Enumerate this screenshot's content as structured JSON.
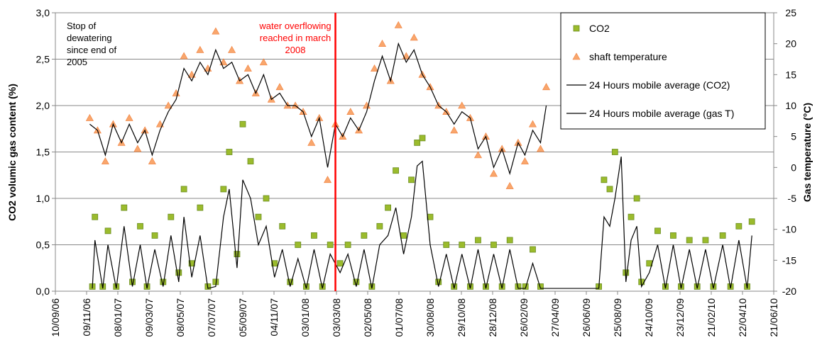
{
  "chart_data": {
    "type": "scatter-line",
    "y_label": "CO2  volumic  gas content  (%)",
    "y2_label": "Gas temperature   (°C)",
    "xlim": [
      "10/09/06",
      "21/06/10"
    ],
    "xticks": [
      "10/09/06",
      "09/11/06",
      "08/01/07",
      "09/03/07",
      "08/05/07",
      "07/07/07",
      "05/09/07",
      "04/11/07",
      "03/01/08",
      "03/03/08",
      "02/05/08",
      "01/07/08",
      "30/08/08",
      "29/10/08",
      "28/12/08",
      "26/02/09",
      "27/04/09",
      "26/06/09",
      "25/08/09",
      "24/10/09",
      "23/12/09",
      "21/02/10",
      "22/04/10",
      "21/06/10"
    ],
    "ylim": [
      0,
      3
    ],
    "yticks": [
      {
        "value": 0,
        "label": "0,0"
      },
      {
        "value": 0.5,
        "label": "0,5"
      },
      {
        "value": 1,
        "label": "1,0"
      },
      {
        "value": 1.5,
        "label": "1,5"
      },
      {
        "value": 2,
        "label": "2,0"
      },
      {
        "value": 2.5,
        "label": "2,5"
      },
      {
        "value": 3,
        "label": "3,0"
      }
    ],
    "y2lim": [
      -20,
      25
    ],
    "y2ticks": [
      -20,
      -15,
      -10,
      -5,
      0,
      5,
      10,
      15,
      20,
      25
    ],
    "grid": true,
    "legend": "top-right",
    "annotations": [
      {
        "text": "Stop of dewatering since end of 2005"
      },
      {
        "text": "water overflowing reached in march 2008",
        "x": "01/03/08",
        "color": "#ff0000"
      }
    ],
    "series": [
      {
        "name": "CO2",
        "color": "#9bbb2c",
        "marker": "square",
        "x": [
          "20/11/06",
          "25/11/06",
          "10/12/06",
          "20/12/06",
          "05/01/07",
          "20/01/07",
          "05/02/07",
          "20/02/07",
          "05/03/07",
          "20/03/07",
          "05/04/07",
          "20/04/07",
          "05/05/07",
          "15/05/07",
          "30/05/07",
          "15/06/07",
          "30/06/07",
          "15/07/07",
          "30/07/07",
          "10/08/07",
          "25/08/07",
          "05/09/07",
          "20/09/07",
          "05/10/07",
          "20/10/07",
          "05/11/07",
          "20/11/07",
          "05/12/07",
          "20/12/07",
          "05/01/08",
          "20/01/08",
          "05/02/08",
          "20/02/08",
          "10/03/08",
          "25/03/08",
          "10/04/08",
          "25/04/08",
          "10/05/08",
          "25/05/08",
          "10/06/08",
          "25/06/08",
          "10/07/08",
          "25/07/08",
          "05/08/08",
          "15/08/08",
          "30/08/08",
          "15/09/08",
          "30/09/08",
          "15/10/08",
          "30/10/08",
          "15/11/08",
          "30/11/08",
          "15/12/08",
          "30/12/08",
          "15/01/09",
          "30/01/09",
          "15/02/09",
          "01/03/09",
          "15/03/09",
          "30/03/09",
          "20/07/09",
          "30/07/09",
          "10/08/09",
          "20/08/09",
          "01/09/09",
          "10/09/09",
          "20/09/09",
          "01/10/09",
          "10/10/09",
          "25/10/09",
          "10/11/09",
          "25/11/09",
          "10/12/09",
          "25/12/09",
          "10/01/10",
          "25/01/10",
          "10/02/10",
          "25/02/10",
          "15/03/10",
          "30/03/10",
          "15/04/10",
          "01/05/10",
          "10/05/10"
        ],
        "values": [
          0.05,
          0.8,
          0.05,
          0.65,
          0.05,
          0.9,
          0.1,
          0.7,
          0.05,
          0.6,
          0.1,
          0.8,
          0.2,
          1.1,
          0.3,
          0.9,
          0.05,
          0.1,
          1.1,
          1.5,
          0.4,
          1.8,
          1.4,
          0.8,
          1.0,
          0.3,
          0.7,
          0.1,
          0.5,
          0.05,
          0.6,
          0.05,
          0.5,
          0.3,
          0.5,
          0.1,
          0.6,
          0.05,
          0.7,
          0.9,
          1.3,
          0.6,
          1.2,
          1.6,
          1.65,
          0.8,
          0.1,
          0.5,
          0.05,
          0.5,
          0.05,
          0.55,
          0.05,
          0.5,
          0.05,
          0.55,
          0.05,
          0.05,
          0.45,
          0.05,
          0.05,
          1.2,
          1.1,
          1.5,
          1.9,
          0.2,
          0.8,
          1.0,
          0.1,
          0.3,
          0.65,
          0.05,
          0.6,
          0.05,
          0.55,
          0.05,
          0.55,
          0.05,
          0.6,
          0.05,
          0.7,
          0.05,
          0.75
        ]
      },
      {
        "name": "shaft temperature",
        "color": "#f9a66c",
        "marker": "triangle",
        "axis": "y2",
        "x": [
          "15/11/06",
          "30/11/06",
          "15/12/06",
          "30/12/06",
          "15/01/07",
          "30/01/07",
          "15/02/07",
          "01/03/07",
          "15/03/07",
          "30/03/07",
          "15/04/07",
          "30/04/07",
          "15/05/07",
          "30/05/07",
          "15/06/07",
          "30/06/07",
          "15/07/07",
          "30/07/07",
          "15/08/07",
          "30/08/07",
          "15/09/07",
          "30/09/07",
          "15/10/07",
          "30/10/07",
          "15/11/07",
          "30/11/07",
          "15/12/07",
          "30/12/07",
          "15/01/08",
          "30/01/08",
          "15/02/08",
          "01/03/08",
          "15/03/08",
          "30/03/08",
          "15/04/08",
          "30/04/08",
          "15/05/08",
          "30/05/08",
          "15/06/08",
          "30/06/08",
          "15/07/08",
          "30/07/08",
          "15/08/08",
          "30/08/08",
          "15/09/08",
          "30/09/08",
          "15/10/08",
          "30/10/08",
          "15/11/08",
          "30/11/08",
          "15/12/08",
          "30/12/08",
          "15/01/09",
          "30/01/09",
          "15/02/09",
          "28/02/09",
          "15/03/09",
          "30/03/09",
          "10/04/09"
        ],
        "values": [
          8,
          6,
          1,
          7,
          4,
          8,
          3,
          6,
          1,
          7,
          10,
          12,
          18,
          15,
          19,
          16,
          22,
          17,
          19,
          14,
          16,
          12,
          17,
          11,
          13,
          10,
          10,
          9,
          4,
          8,
          -2,
          7,
          5,
          9,
          6,
          10,
          16,
          20,
          14,
          23,
          18,
          21,
          15,
          13,
          10,
          9,
          6,
          10,
          8,
          2,
          5,
          -1,
          3,
          -3,
          4,
          1,
          7,
          3,
          13
        ]
      },
      {
        "name": "24 Hours mobile average (CO2)",
        "color": "#000000",
        "marker": "line",
        "x": [
          "20/11/06",
          "25/11/06",
          "10/12/06",
          "20/12/06",
          "05/01/07",
          "20/01/07",
          "05/02/07",
          "20/02/07",
          "05/03/07",
          "20/03/07",
          "05/04/07",
          "20/04/07",
          "05/05/07",
          "15/05/07",
          "30/05/07",
          "15/06/07",
          "30/06/07",
          "15/07/07",
          "30/07/07",
          "10/08/07",
          "25/08/07",
          "05/09/07",
          "20/09/07",
          "05/10/07",
          "20/10/07",
          "05/11/07",
          "20/11/07",
          "05/12/07",
          "20/12/07",
          "05/01/08",
          "20/01/08",
          "05/02/08",
          "20/02/08",
          "10/03/08",
          "25/03/08",
          "10/04/08",
          "25/04/08",
          "10/05/08",
          "25/05/08",
          "10/06/08",
          "25/06/08",
          "10/07/08",
          "25/07/08",
          "05/08/08",
          "15/08/08",
          "30/08/08",
          "15/09/08",
          "30/09/08",
          "15/10/08",
          "30/10/08",
          "15/11/08",
          "30/11/08",
          "15/12/08",
          "30/12/08",
          "15/01/09",
          "30/01/09",
          "15/02/09",
          "01/03/09",
          "15/03/09",
          "30/03/09",
          "20/07/09",
          "30/07/09",
          "10/08/09",
          "20/08/09",
          "01/09/09",
          "10/09/09",
          "20/09/09",
          "01/10/09",
          "10/10/09",
          "25/10/09",
          "10/11/09",
          "25/11/09",
          "10/12/09",
          "25/12/09",
          "10/01/10",
          "25/01/10",
          "10/02/10",
          "25/02/10",
          "15/03/10",
          "30/03/10",
          "15/04/10",
          "01/05/10",
          "10/05/10"
        ],
        "values": [
          0.03,
          0.55,
          0.03,
          0.5,
          0.03,
          0.7,
          0.05,
          0.5,
          0.03,
          0.45,
          0.05,
          0.6,
          0.1,
          0.8,
          0.15,
          0.6,
          0.03,
          0.05,
          0.8,
          1.1,
          0.25,
          1.2,
          1.0,
          0.5,
          0.7,
          0.15,
          0.45,
          0.05,
          0.35,
          0.03,
          0.45,
          0.03,
          0.4,
          0.2,
          0.4,
          0.05,
          0.45,
          0.03,
          0.5,
          0.6,
          0.9,
          0.4,
          0.8,
          1.35,
          1.4,
          0.5,
          0.05,
          0.4,
          0.03,
          0.4,
          0.03,
          0.45,
          0.03,
          0.4,
          0.03,
          0.45,
          0.03,
          0.03,
          0.3,
          0.03,
          0.03,
          0.8,
          0.7,
          1.0,
          1.45,
          0.1,
          0.55,
          0.7,
          0.05,
          0.2,
          0.5,
          0.03,
          0.5,
          0.03,
          0.45,
          0.03,
          0.45,
          0.03,
          0.5,
          0.03,
          0.55,
          0.03,
          0.6
        ]
      },
      {
        "name": "24 Hours mobile average (gas T)",
        "color": "#000000",
        "marker": "line",
        "axis": "y2",
        "x": [
          "15/11/06",
          "30/11/06",
          "15/12/06",
          "30/12/06",
          "15/01/07",
          "30/01/07",
          "15/02/07",
          "01/03/07",
          "15/03/07",
          "30/03/07",
          "15/04/07",
          "30/04/07",
          "15/05/07",
          "30/05/07",
          "15/06/07",
          "30/06/07",
          "15/07/07",
          "30/07/07",
          "15/08/07",
          "30/08/07",
          "15/09/07",
          "30/09/07",
          "15/10/07",
          "30/10/07",
          "15/11/07",
          "30/11/07",
          "15/12/07",
          "30/12/07",
          "15/01/08",
          "30/01/08",
          "15/02/08",
          "01/03/08",
          "15/03/08",
          "30/03/08",
          "15/04/08",
          "30/04/08",
          "15/05/08",
          "30/05/08",
          "15/06/08",
          "30/06/08",
          "15/07/08",
          "30/07/08",
          "15/08/08",
          "30/08/08",
          "15/09/08",
          "30/09/08",
          "15/10/08",
          "30/10/08",
          "15/11/08",
          "30/11/08",
          "15/12/08",
          "30/12/08",
          "15/01/09",
          "30/01/09",
          "15/02/09",
          "28/02/09",
          "15/03/09",
          "30/03/09",
          "10/04/09"
        ],
        "values": [
          7,
          6,
          2,
          7,
          4,
          7,
          4,
          6,
          2,
          6,
          9,
          11,
          16,
          14,
          17,
          15,
          19,
          16,
          17,
          14,
          15,
          12,
          15,
          11,
          12,
          10,
          10,
          9,
          5,
          8,
          0,
          7,
          5,
          8,
          6,
          9,
          14,
          18,
          14,
          20,
          17,
          19,
          15,
          13,
          10,
          9,
          7,
          9,
          8,
          3,
          5,
          0,
          3,
          -1,
          4,
          2,
          6,
          4,
          10
        ]
      }
    ]
  }
}
